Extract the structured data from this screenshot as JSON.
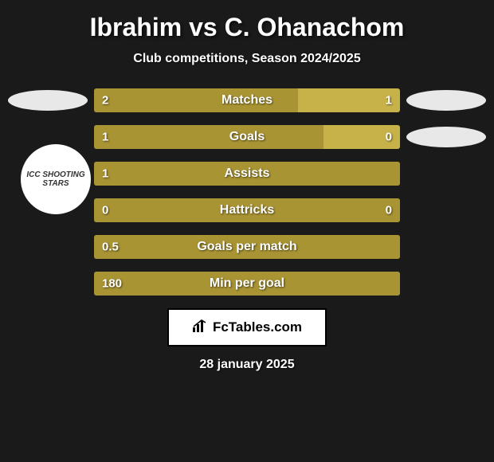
{
  "title": "Ibrahim vs C. Ohanachom",
  "subtitle": "Club competitions, Season 2024/2025",
  "background_color": "#1a1a1a",
  "avatar_color": "#e8e8e8",
  "club_logo_text": "ICC SHOOTING STARS",
  "colors": {
    "left_bar": "#a99434",
    "right_bar": "#c7b24a",
    "full_bar": "#a99434"
  },
  "rows": [
    {
      "metric": "Matches",
      "left_value": "2",
      "right_value": "1",
      "left_width_pct": 66.6,
      "right_width_pct": 33.4,
      "show_left_avatar": true,
      "show_right_avatar": true
    },
    {
      "metric": "Goals",
      "left_value": "1",
      "right_value": "0",
      "left_width_pct": 75,
      "right_width_pct": 25,
      "show_left_avatar": false,
      "show_right_avatar": true
    },
    {
      "metric": "Assists",
      "left_value": "1",
      "right_value": "",
      "left_width_pct": 100,
      "right_width_pct": 0,
      "show_left_avatar": false,
      "show_right_avatar": false
    },
    {
      "metric": "Hattricks",
      "left_value": "0",
      "right_value": "0",
      "left_width_pct": 100,
      "right_width_pct": 0,
      "show_left_avatar": false,
      "show_right_avatar": false
    },
    {
      "metric": "Goals per match",
      "left_value": "0.5",
      "right_value": "",
      "left_width_pct": 100,
      "right_width_pct": 0,
      "show_left_avatar": false,
      "show_right_avatar": false
    },
    {
      "metric": "Min per goal",
      "left_value": "180",
      "right_value": "",
      "left_width_pct": 100,
      "right_width_pct": 0,
      "show_left_avatar": false,
      "show_right_avatar": false
    }
  ],
  "branding": {
    "text": "FcTables.com"
  },
  "footer_date": "28 january 2025",
  "typography": {
    "title_fontsize": 32,
    "subtitle_fontsize": 16,
    "metric_fontsize": 16,
    "value_fontsize": 15,
    "footer_fontsize": 16
  }
}
